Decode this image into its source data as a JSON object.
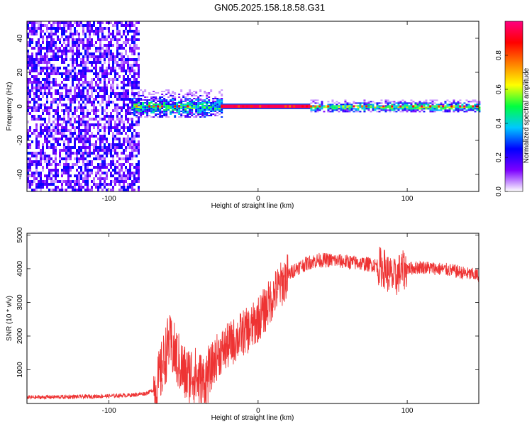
{
  "title": "GN05.2025.158.18.58.G31",
  "chart_data": [
    {
      "type": "heatmap",
      "xlabel": "Height of straight line (km)",
      "ylabel": "Frequency (Hz)",
      "xlim": [
        -155,
        148
      ],
      "ylim": [
        -50,
        50
      ],
      "xticks": [
        -100,
        0,
        100
      ],
      "yticks": [
        -40,
        -20,
        0,
        20,
        40
      ],
      "colorbar": {
        "label": "Normalized spectral amplitude",
        "range": [
          0,
          1
        ],
        "ticks": [
          0.0,
          0.2,
          0.4,
          0.6,
          0.8
        ],
        "colors": [
          "#ffffff",
          "#7d00ff",
          "#0000ff",
          "#00c8ff",
          "#00ff40",
          "#ffff00",
          "#ff8000",
          "#ff0000",
          "#ff0080"
        ]
      },
      "regions": [
        {
          "x": [
            -155,
            -80
          ],
          "y": [
            -50,
            50
          ],
          "level": 0.25,
          "pattern": "noise"
        },
        {
          "x": [
            -85,
            -25
          ],
          "y": [
            -6,
            10
          ],
          "level": 0.45,
          "pattern": "tone-broad"
        },
        {
          "x": [
            -25,
            35
          ],
          "y": [
            -1,
            1
          ],
          "level": 0.95,
          "pattern": "tone-narrow"
        },
        {
          "x": [
            35,
            148
          ],
          "y": [
            -3,
            4
          ],
          "level": 0.55,
          "pattern": "tone-broad"
        }
      ],
      "tone_center_hz": 0
    },
    {
      "type": "line",
      "xlabel": "Height of straight line (km)",
      "ylabel": "SNR (10 * v/v)",
      "xlim": [
        -155,
        148
      ],
      "ylim": [
        0,
        5050
      ],
      "xticks": [
        -100,
        0,
        100
      ],
      "yticks": [
        1000,
        2000,
        3000,
        4000,
        5000
      ],
      "line_color": "#ee3333",
      "series": [
        {
          "x": [
            -155,
            -140,
            -120,
            -100,
            -85,
            -75,
            -68,
            -64,
            -60,
            -56,
            -52,
            -48,
            -44,
            -40,
            -36,
            -33,
            -30,
            -26,
            -20,
            -15,
            -10,
            -5,
            0,
            5,
            10,
            15,
            20,
            25,
            30,
            35,
            40,
            50,
            60,
            70,
            80,
            85,
            88,
            92,
            95,
            100,
            110,
            120,
            130,
            140,
            148
          ],
          "y": [
            180,
            190,
            200,
            220,
            250,
            300,
            450,
            1100,
            1800,
            1500,
            1100,
            800,
            900,
            700,
            600,
            900,
            1200,
            1500,
            1700,
            1900,
            2100,
            2200,
            2500,
            2800,
            3200,
            3500,
            3800,
            4000,
            4100,
            4200,
            4250,
            4250,
            4200,
            4150,
            4100,
            4000,
            3800,
            3700,
            3900,
            4000,
            4050,
            4000,
            3950,
            3850,
            3800
          ]
        }
      ]
    }
  ]
}
